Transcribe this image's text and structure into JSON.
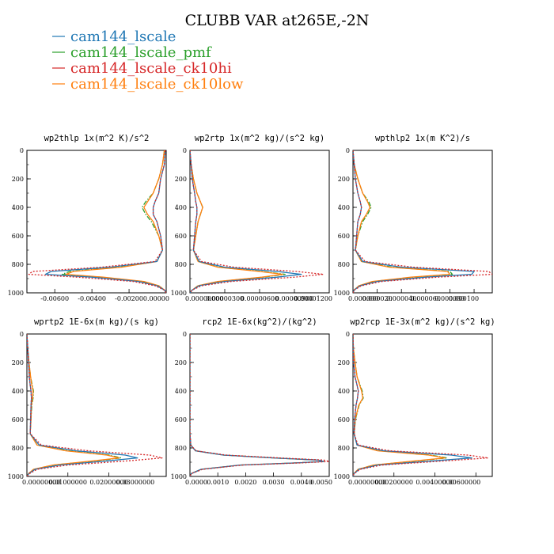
{
  "figure_title": "CLUBB VAR at265E,-2N",
  "legend": [
    {
      "label": "cam144_lscale",
      "color": "#1f77b4",
      "dash": "solid"
    },
    {
      "label": "cam144_lscale_pmf",
      "color": "#2ca02c",
      "dash": "dashdot"
    },
    {
      "label": "cam144_lscale_ck10hi",
      "color": "#d62728",
      "dash": "dotted"
    },
    {
      "label": "cam144_lscale_ck10low",
      "color": "#ff7f0e",
      "dash": "solid"
    }
  ],
  "chart_data": [
    {
      "type": "line",
      "title": "wp2thlp  1x(m^2 K)/s^2",
      "xlim": [
        -0.0075,
        0.0
      ],
      "ylim": [
        1000,
        0
      ],
      "yticks": [
        0,
        200,
        400,
        600,
        800,
        1000
      ],
      "xticks": [
        -0.006,
        -0.004,
        -0.002,
        0.0
      ],
      "xtick_labels": [
        "-0.00600",
        "-0.00400",
        "-0.00200",
        "0.00000"
      ],
      "y": [
        0,
        100,
        200,
        300,
        360,
        400,
        450,
        500,
        600,
        700,
        780,
        820,
        850,
        870,
        890,
        920,
        950,
        980,
        1000
      ],
      "series": [
        {
          "name": "cam144_lscale",
          "values": [
            -5e-05,
            -0.0001,
            -0.0003,
            -0.0004,
            -0.0006,
            -0.0007,
            -0.0007,
            -0.0005,
            -0.0003,
            -0.0002,
            -0.0005,
            -0.003,
            -0.0062,
            -0.0065,
            -0.004,
            -0.0015,
            -0.0005,
            -0.0001,
            0.0
          ]
        },
        {
          "name": "cam144_lscale_pmf",
          "values": [
            -0.0001,
            -0.0002,
            -0.0004,
            -0.0007,
            -0.0011,
            -0.0013,
            -0.0011,
            -0.0008,
            -0.0004,
            -0.0002,
            -0.0005,
            -0.0025,
            -0.0052,
            -0.0056,
            -0.0035,
            -0.0013,
            -0.0004,
            -0.0001,
            0.0
          ]
        },
        {
          "name": "cam144_lscale_ck10hi",
          "values": [
            -5e-05,
            -0.0001,
            -0.0003,
            -0.0004,
            -0.0006,
            -0.0007,
            -0.0007,
            -0.0005,
            -0.0003,
            -0.0002,
            -0.0006,
            -0.0035,
            -0.0072,
            -0.0074,
            -0.0048,
            -0.0018,
            -0.0006,
            -0.0001,
            0.0
          ]
        },
        {
          "name": "cam144_lscale_ck10low",
          "values": [
            -0.0001,
            -0.0002,
            -0.0004,
            -0.0007,
            -0.001,
            -0.0012,
            -0.001,
            -0.0007,
            -0.0004,
            -0.0002,
            -0.0005,
            -0.0024,
            -0.005,
            -0.0054,
            -0.0034,
            -0.0012,
            -0.0004,
            -0.0001,
            0.0
          ]
        }
      ]
    },
    {
      "type": "line",
      "title": "wp2rtp  1x(m^2 kg)/(s^2 kg)",
      "xlim": [
        0.0,
        1.2e-05
      ],
      "ylim": [
        1000,
        0
      ],
      "yticks": [
        0,
        200,
        400,
        600,
        800,
        1000
      ],
      "xticks": [
        0.0,
        3e-06,
        6e-06,
        9e-06,
        1.2e-05
      ],
      "xtick_labels": [
        "0.00000000",
        "0.00000300",
        "0.00000600",
        "0.00000900",
        "0.00001200"
      ],
      "y": [
        0,
        100,
        200,
        300,
        360,
        400,
        450,
        500,
        600,
        700,
        780,
        820,
        850,
        870,
        890,
        920,
        950,
        980,
        1000
      ],
      "series": [
        {
          "name": "cam144_lscale",
          "values": [
            0.0,
            1e-07,
            2e-07,
            4e-07,
            5e-07,
            6e-07,
            6e-07,
            5e-07,
            4e-07,
            3e-07,
            8e-07,
            3e-06,
            7.5e-06,
            9.6e-06,
            7.5e-06,
            3e-06,
            8e-07,
            2e-07,
            0.0
          ]
        },
        {
          "name": "cam144_lscale_pmf",
          "values": [
            0.0,
            1e-07,
            3e-07,
            6e-07,
            9e-07,
            1.1e-06,
            9e-07,
            7e-07,
            5e-07,
            3e-07,
            7e-07,
            2.5e-06,
            6.2e-06,
            8.2e-06,
            6.3e-06,
            2.5e-06,
            7e-07,
            2e-07,
            0.0
          ]
        },
        {
          "name": "cam144_lscale_ck10hi",
          "values": [
            0.0,
            1e-07,
            2e-07,
            4e-07,
            5e-07,
            6e-07,
            6e-07,
            5e-07,
            4e-07,
            3e-07,
            1e-06,
            3.8e-06,
            9.2e-06,
            1.15e-05,
            9e-06,
            3.6e-06,
            1e-06,
            2e-07,
            0.0
          ]
        },
        {
          "name": "cam144_lscale_ck10low",
          "values": [
            0.0,
            1e-07,
            3e-07,
            6e-07,
            9e-07,
            1.1e-06,
            9e-07,
            7e-07,
            5e-07,
            3e-07,
            7e-07,
            2.4e-06,
            6e-06,
            8e-06,
            6.2e-06,
            2.4e-06,
            7e-07,
            2e-07,
            0.0
          ]
        }
      ]
    },
    {
      "type": "line",
      "title": "wpthlp2  1x(m K^2)/s",
      "xlim": [
        0.0,
        0.000115
      ],
      "ylim": [
        1000,
        0
      ],
      "yticks": [
        0,
        200,
        400,
        600,
        800,
        1000
      ],
      "xticks": [
        0.0,
        2e-05,
        4e-05,
        6e-05,
        8e-05,
        0.0001
      ],
      "xtick_labels": [
        "0.000000",
        "0.000020",
        "0.000040",
        "0.000060",
        "0.000080",
        "0.000100"
      ],
      "y": [
        0,
        100,
        200,
        300,
        360,
        400,
        450,
        500,
        600,
        700,
        780,
        820,
        850,
        870,
        890,
        920,
        950,
        980,
        1000
      ],
      "series": [
        {
          "name": "cam144_lscale",
          "values": [
            0.0,
            1e-06,
            2e-06,
            4e-06,
            6e-06,
            7e-06,
            6e-06,
            4e-06,
            3e-06,
            2e-06,
            8e-06,
            4e-05,
            0.0001,
            9.8e-05,
            6e-05,
            2e-05,
            6e-06,
            1e-06,
            0.0
          ]
        },
        {
          "name": "cam144_lscale_pmf",
          "values": [
            0.0,
            1e-06,
            4e-06,
            8e-06,
            1.3e-05,
            1.5e-05,
            1.2e-05,
            8e-06,
            4e-06,
            2e-06,
            7e-06,
            3.2e-05,
            8e-05,
            8.2e-05,
            5e-05,
            1.7e-05,
            5e-06,
            1e-06,
            0.0
          ]
        },
        {
          "name": "cam144_lscale_ck10hi",
          "values": [
            0.0,
            1e-06,
            2e-06,
            4e-06,
            6e-06,
            7e-06,
            6e-06,
            4e-06,
            3e-06,
            2e-06,
            1e-05,
            5e-05,
            0.000112,
            0.000115,
            7e-05,
            2.4e-05,
            7e-06,
            1e-06,
            0.0
          ]
        },
        {
          "name": "cam144_lscale_ck10low",
          "values": [
            0.0,
            1e-06,
            4e-06,
            8e-06,
            1.2e-05,
            1.4e-05,
            1.1e-05,
            7e-06,
            4e-06,
            2e-06,
            7e-06,
            3e-05,
            7.8e-05,
            8e-05,
            4.8e-05,
            1.6e-05,
            5e-06,
            1e-06,
            0.0
          ]
        }
      ]
    },
    {
      "type": "line",
      "title": "wprtp2  1E-6x(m kg)/(s kg)",
      "xlim": [
        0.0,
        0.034
      ],
      "ylim": [
        1000,
        0
      ],
      "yticks": [
        0,
        200,
        400,
        600,
        800,
        1000
      ],
      "xticks": [
        0.0,
        0.01,
        0.02,
        0.03
      ],
      "xtick_labels": [
        "0.00000000",
        "0.01000000",
        "0.02000000",
        "0.03000000"
      ],
      "y": [
        0,
        100,
        200,
        300,
        360,
        400,
        450,
        500,
        600,
        700,
        780,
        820,
        850,
        870,
        890,
        920,
        950,
        980,
        1000
      ],
      "series": [
        {
          "name": "cam144_lscale",
          "values": [
            0.0,
            0.0002,
            0.0004,
            0.0006,
            0.0008,
            0.001,
            0.0011,
            0.001,
            0.0009,
            0.0008,
            0.003,
            0.012,
            0.024,
            0.027,
            0.02,
            0.008,
            0.002,
            0.0005,
            0.0
          ]
        },
        {
          "name": "cam144_lscale_pmf",
          "values": [
            0.0,
            0.0002,
            0.0005,
            0.0009,
            0.0013,
            0.0016,
            0.0015,
            0.0012,
            0.001,
            0.0008,
            0.0025,
            0.01,
            0.02,
            0.023,
            0.017,
            0.0065,
            0.0017,
            0.0004,
            0.0
          ]
        },
        {
          "name": "cam144_lscale_ck10hi",
          "values": [
            0.0,
            0.0002,
            0.0004,
            0.0006,
            0.0008,
            0.001,
            0.0011,
            0.001,
            0.0009,
            0.0008,
            0.0035,
            0.015,
            0.03,
            0.033,
            0.025,
            0.01,
            0.0025,
            0.0006,
            0.0
          ]
        },
        {
          "name": "cam144_lscale_ck10low",
          "values": [
            0.0,
            0.0002,
            0.0005,
            0.0009,
            0.0012,
            0.0015,
            0.0014,
            0.0011,
            0.001,
            0.0008,
            0.0025,
            0.0095,
            0.0195,
            0.0225,
            0.0165,
            0.0063,
            0.0016,
            0.0004,
            0.0
          ]
        }
      ]
    },
    {
      "type": "line",
      "title": "rcp2  1E-6x(kg^2)/(kg^2)",
      "xlim": [
        0.0,
        0.005
      ],
      "ylim": [
        1000,
        0
      ],
      "yticks": [
        0,
        200,
        400,
        600,
        800,
        1000
      ],
      "xticks": [
        0.0,
        0.001,
        0.002,
        0.003,
        0.004,
        0.005
      ],
      "xtick_labels": [
        "0.0000",
        "0.0010",
        "0.0020",
        "0.0030",
        "0.0040",
        "0.0050"
      ],
      "y": [
        0,
        200,
        400,
        600,
        700,
        780,
        820,
        850,
        870,
        885,
        895,
        905,
        920,
        950,
        980,
        1000
      ],
      "series": [
        {
          "name": "cam144_lscale",
          "values": [
            0.0,
            0.0,
            0.0,
            0.0,
            0.0,
            3e-05,
            0.0002,
            0.0012,
            0.003,
            0.0046,
            0.0048,
            0.0038,
            0.0018,
            0.0004,
            5e-05,
            0.0
          ]
        },
        {
          "name": "cam144_lscale_pmf",
          "values": [
            0.0,
            0.0,
            0.0,
            0.0,
            0.0,
            3e-05,
            0.0002,
            0.0012,
            0.003,
            0.0046,
            0.0048,
            0.0038,
            0.0018,
            0.0004,
            5e-05,
            0.0
          ]
        },
        {
          "name": "cam144_lscale_ck10hi",
          "values": [
            0.0,
            0.0,
            0.0,
            0.0,
            0.0,
            3e-05,
            0.00022,
            0.0013,
            0.0032,
            0.0048,
            0.005,
            0.004,
            0.0019,
            0.00045,
            5e-05,
            0.0
          ]
        },
        {
          "name": "cam144_lscale_ck10low",
          "values": [
            0.0,
            0.0,
            0.0,
            0.0,
            0.0,
            3e-05,
            0.0002,
            0.0012,
            0.003,
            0.0046,
            0.0048,
            0.0038,
            0.0018,
            0.0004,
            5e-05,
            0.0
          ]
        }
      ]
    },
    {
      "type": "line",
      "title": "wp2rcp  1E-3x(m^2 kg)/(s^2 kg)",
      "xlim": [
        0.0,
        0.0068
      ],
      "ylim": [
        1000,
        0
      ],
      "yticks": [
        0,
        200,
        400,
        600,
        800,
        1000
      ],
      "xticks": [
        0.0,
        0.002,
        0.004,
        0.006
      ],
      "xtick_labels": [
        "0.00000000",
        "0.00200000",
        "0.00400000",
        "0.00600000"
      ],
      "y": [
        0,
        100,
        200,
        300,
        360,
        400,
        450,
        500,
        600,
        700,
        780,
        820,
        850,
        870,
        890,
        920,
        950,
        980,
        1000
      ],
      "series": [
        {
          "name": "cam144_lscale",
          "values": [
            0.0,
            1e-05,
            3e-05,
            0.0001,
            0.0002,
            0.00026,
            0.00022,
            0.00015,
            8e-05,
            5e-05,
            0.0002,
            0.0015,
            0.0048,
            0.0058,
            0.004,
            0.0012,
            0.0003,
            5e-05,
            0.0
          ]
        },
        {
          "name": "cam144_lscale_pmf",
          "values": [
            0.0,
            2e-05,
            0.0001,
            0.0002,
            0.00035,
            0.00045,
            0.0005,
            0.0003,
            0.00012,
            6e-05,
            0.0002,
            0.0013,
            0.0038,
            0.0046,
            0.0032,
            0.001,
            0.00025,
            4e-05,
            0.0
          ]
        },
        {
          "name": "cam144_lscale_ck10hi",
          "values": [
            0.0,
            1e-05,
            3e-05,
            0.0001,
            0.0002,
            0.00026,
            0.00022,
            0.00015,
            8e-05,
            5e-05,
            0.00025,
            0.0018,
            0.0056,
            0.0066,
            0.0046,
            0.0014,
            0.00035,
            5e-05,
            0.0
          ]
        },
        {
          "name": "cam144_lscale_ck10low",
          "values": [
            0.0,
            2e-05,
            0.0001,
            0.0002,
            0.00033,
            0.00042,
            0.00048,
            0.00028,
            0.00011,
            6e-05,
            0.0002,
            0.0012,
            0.0037,
            0.0045,
            0.0031,
            0.001,
            0.00025,
            4e-05,
            0.0
          ]
        }
      ]
    }
  ]
}
